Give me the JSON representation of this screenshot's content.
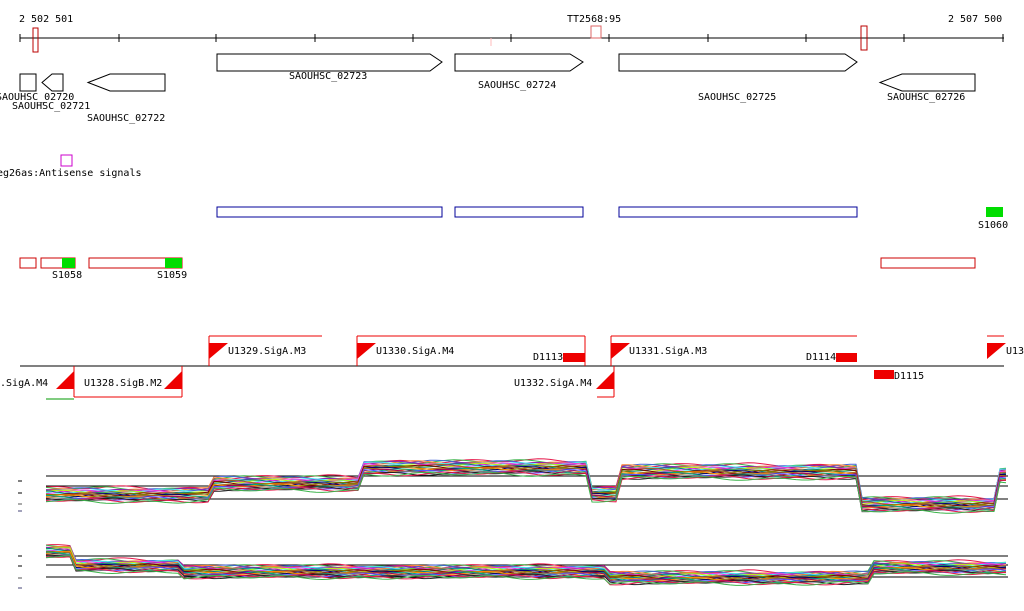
{
  "axis": {
    "start_label": "2 502 501",
    "end_label": "2 507 500",
    "center_label": "TT2568:95"
  },
  "genes": [
    {
      "label": "SAOUHSC_02720",
      "strand": "-"
    },
    {
      "label": "SAOUHSC_02721",
      "strand": "-"
    },
    {
      "label": "SAOUHSC_02722",
      "strand": "-"
    },
    {
      "label": "SAOUHSC_02723",
      "strand": "+"
    },
    {
      "label": "SAOUHSC_02724",
      "strand": "+"
    },
    {
      "label": "SAOUHSC_02725",
      "strand": "+"
    },
    {
      "label": "SAOUHSC_02726",
      "strand": "-"
    }
  ],
  "antisense_label": "eg26as:Antisense signals",
  "segments": [
    "S1058",
    "S1059",
    "S1060"
  ],
  "promoters_top": [
    "U1329.SigA.M3",
    "U1330.SigA.M4",
    "U1331.SigA.M3",
    "U13"
  ],
  "promoters_bottom": [
    "7.SigA.M4",
    "U1328.SigB.M2",
    "U1332.SigA.M4"
  ],
  "terminators": [
    "D1113",
    "D1114",
    "D1115"
  ],
  "colors": {
    "gene_outline": "#000000",
    "segment_fill": "#00dd00",
    "operon_outline": "#cc0000",
    "cds_box": "#000099",
    "antisense": "#cc00cc",
    "promoter": "#ee0000"
  }
}
